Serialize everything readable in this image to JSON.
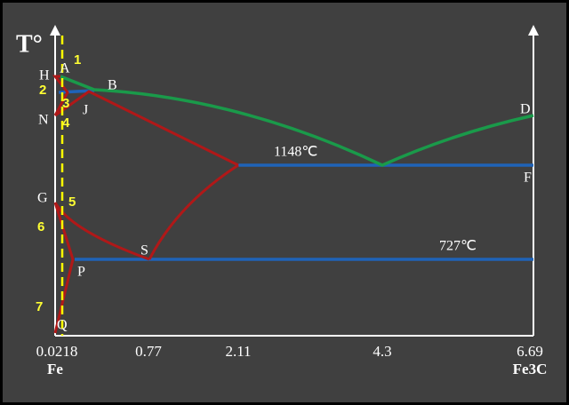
{
  "axis_title": "T°",
  "point_labels": [
    "H",
    "A",
    "B",
    "N",
    "J",
    "D",
    "F",
    "G",
    "S",
    "P",
    "Q"
  ],
  "region_numbers": [
    "1",
    "2",
    "3",
    "4",
    "5",
    "6",
    "7"
  ],
  "temperatures": [
    "1148℃",
    "727℃"
  ],
  "x_labels": [
    "0.0218",
    "0.77",
    "2.11",
    "4.3",
    "6.69"
  ],
  "x_names": [
    "Fe",
    "Fe3C"
  ]
}
